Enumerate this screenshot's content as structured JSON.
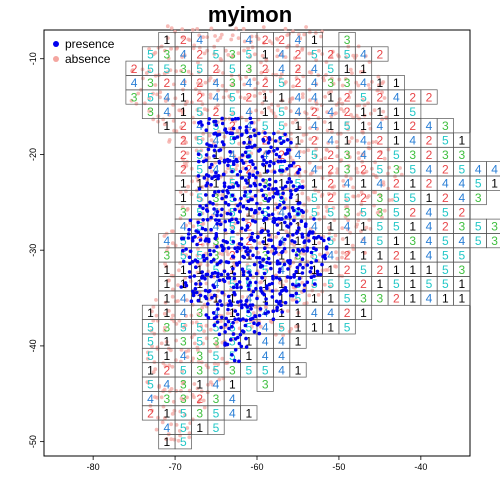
{
  "chart_data": {
    "type": "scatter",
    "title": "myimon",
    "xlabel": "",
    "ylabel": "",
    "xlim": [
      -86,
      -34
    ],
    "ylim": [
      -51.5,
      -7
    ],
    "x_ticks": [
      "-80",
      "-70",
      "-60",
      "-50",
      "-40"
    ],
    "y_ticks": [
      "-10",
      "-20",
      "-30",
      "-40",
      "-50"
    ],
    "legend": {
      "placement": "top-left",
      "entries": [
        {
          "label": "presence",
          "color": "#0000ee"
        },
        {
          "label": "absence",
          "color": "#f4a6a0"
        }
      ]
    },
    "fold_colors": {
      "1": "#000000",
      "2": "#e8474a",
      "3": "#3fbf3f",
      "4": "#2a7fd6",
      "5": "#22c7c7"
    },
    "cell_size_deg": 2,
    "grid_rows": [
      {
        "y": -8,
        "x0": -71,
        "folds": "1240042241030"
      },
      {
        "y": -9.5,
        "x0": -73,
        "folds": "534253514252542"
      },
      {
        "y": -11,
        "x0": -75,
        "folds": "25535253242451100"
      },
      {
        "y": -12.5,
        "x0": -75,
        "folds": "43242434252433411"
      },
      {
        "y": -14,
        "x0": -75,
        "folds": "35412452114412524220"
      },
      {
        "y": -15.5,
        "x0": -73,
        "folds": "34152541542421115"
      },
      {
        "y": -17,
        "x0": -71,
        "folds": "124524551415141243"
      },
      {
        "y": -18.5,
        "x0": -69,
        "folds": "254512512414214251"
      },
      {
        "y": -20,
        "x0": -69,
        "folds": "2514542452342532330"
      },
      {
        "y": -21.5,
        "x0": -69,
        "folds": "25452152423253542544"
      },
      {
        "y": -23,
        "x0": -69,
        "folds": "1115131512414212445130"
      },
      {
        "y": -24.5,
        "x0": -69,
        "folds": "1535535152523551243"
      },
      {
        "y": -26,
        "x0": -69,
        "folds": "354515455535352452"
      },
      {
        "y": -27.5,
        "x0": -69,
        "folds": "45452111414155142353"
      },
      {
        "y": -29,
        "x0": -71,
        "folds": "452352141151451345453"
      },
      {
        "y": -30.5,
        "x0": -71,
        "folds": "3553213135421121455"
      },
      {
        "y": -32,
        "x0": -71,
        "folds": "1115155411125211153"
      },
      {
        "y": -33.5,
        "x0": -71,
        "folds": "1114551155552151551"
      },
      {
        "y": -35,
        "x0": -71,
        "folds": "1411141151153321411"
      },
      {
        "y": -36.5,
        "x0": -73,
        "folds": "11434154114421"
      },
      {
        "y": -38,
        "x0": -73,
        "folds": "5355555451115"
      },
      {
        "y": -39.5,
        "x0": -73,
        "folds": "5135351441"
      },
      {
        "y": -41,
        "x0": -73,
        "folds": "514355144"
      },
      {
        "y": -42.5,
        "x0": -73,
        "folds": "1253535541"
      },
      {
        "y": -44,
        "x0": -73,
        "folds": "54314103"
      },
      {
        "y": -45.5,
        "x0": -73,
        "folds": "433234"
      },
      {
        "y": -47,
        "x0": -73,
        "folds": "215354100"
      },
      {
        "y": -48.5,
        "x0": -71,
        "folds": "45150"
      },
      {
        "y": -50,
        "x0": -71,
        "folds": "1500"
      }
    ],
    "presence_blocks": [
      {
        "lat": -17,
        "lon": [
          -67,
          -60
        ]
      },
      {
        "lat": -18.5,
        "lon": [
          -66,
          -56
        ]
      },
      {
        "lat": -20,
        "lon": [
          -67,
          -56
        ]
      },
      {
        "lat": -21.5,
        "lon": [
          -66,
          -55
        ]
      },
      {
        "lat": -23,
        "lon": [
          -67,
          -54
        ]
      },
      {
        "lat": -24.5,
        "lon": [
          -66,
          -55
        ]
      },
      {
        "lat": -26,
        "lon": [
          -67,
          -54
        ]
      },
      {
        "lat": -27.5,
        "lon": [
          -68,
          -53
        ]
      },
      {
        "lat": -29,
        "lon": [
          -69,
          -51
        ]
      },
      {
        "lat": -30.5,
        "lon": [
          -69,
          -51
        ]
      },
      {
        "lat": -32,
        "lon": [
          -68,
          -52
        ]
      },
      {
        "lat": -33.5,
        "lon": [
          -69,
          -53
        ]
      },
      {
        "lat": -35,
        "lon": [
          -68,
          -55
        ]
      },
      {
        "lat": -36.5,
        "lon": [
          -66,
          -57
        ]
      },
      {
        "lat": -38,
        "lon": [
          -65,
          -59
        ]
      },
      {
        "lat": -39.5,
        "lon": [
          -64,
          -61
        ]
      },
      {
        "lat": -41,
        "lon": [
          -63,
          -62
        ]
      }
    ],
    "absence_extent": [
      {
        "lat": -7.5,
        "lon": [
          -71,
          -52
        ]
      },
      {
        "lat": -9.5,
        "lon": [
          -73,
          -46
        ]
      },
      {
        "lat": -12,
        "lon": [
          -75,
          -44
        ]
      },
      {
        "lat": -14,
        "lon": [
          -75,
          -44
        ]
      },
      {
        "lat": -16,
        "lon": [
          -73,
          -44
        ]
      },
      {
        "lat": -18,
        "lon": [
          -71,
          -45
        ]
      },
      {
        "lat": -20,
        "lon": [
          -69,
          -44
        ]
      },
      {
        "lat": -22,
        "lon": [
          -69,
          -42
        ]
      },
      {
        "lat": -24,
        "lon": [
          -69,
          -43
        ]
      },
      {
        "lat": -26,
        "lon": [
          -69,
          -44
        ]
      },
      {
        "lat": -28,
        "lon": [
          -71,
          -46
        ]
      },
      {
        "lat": -30,
        "lon": [
          -71,
          -47
        ]
      },
      {
        "lat": -32,
        "lon": [
          -71,
          -49
        ]
      },
      {
        "lat": -34,
        "lon": [
          -71,
          -51
        ]
      },
      {
        "lat": -36,
        "lon": [
          -73,
          -54
        ]
      },
      {
        "lat": -38,
        "lon": [
          -73,
          -55
        ]
      },
      {
        "lat": -40,
        "lon": [
          -73,
          -62
        ]
      },
      {
        "lat": -42,
        "lon": [
          -73,
          -63
        ]
      },
      {
        "lat": -44,
        "lon": [
          -73,
          -64
        ]
      },
      {
        "lat": -46,
        "lon": [
          -73,
          -66
        ]
      },
      {
        "lat": -48,
        "lon": [
          -72,
          -67
        ]
      },
      {
        "lat": -50,
        "lon": [
          -71,
          -68
        ]
      }
    ]
  }
}
